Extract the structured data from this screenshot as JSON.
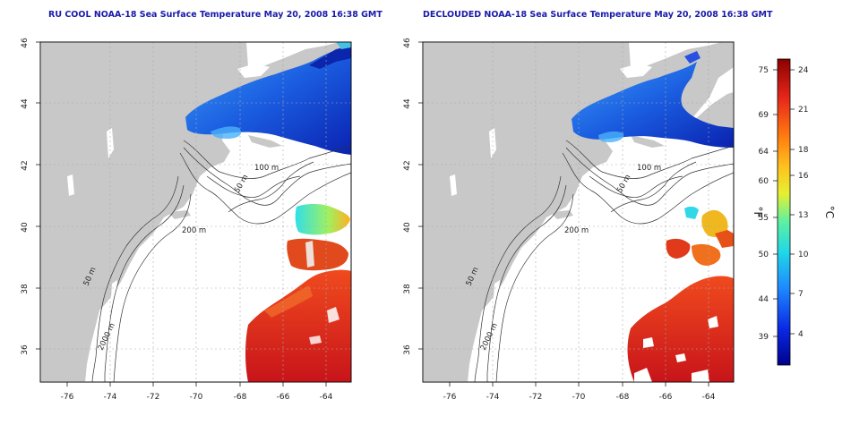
{
  "maps": {
    "left_title": "RU COOL NOAA-18 Sea Surface Temperature May 20, 2008 16:38 GMT",
    "right_title": "DECLOUDED NOAA-18 Sea Surface Temperature May 20, 2008 16:38 GMT",
    "lat_ticks": [
      "46",
      "44",
      "42",
      "40",
      "38",
      "36"
    ],
    "lon_ticks": [
      "-76",
      "-74",
      "-72",
      "-70",
      "-68",
      "-66",
      "-64"
    ],
    "contour_labels": {
      "m100": "100 m",
      "m50": "50 m",
      "m200": "200 m",
      "m2000": "2000 m",
      "m50b": "50 m"
    }
  },
  "colorbar": {
    "f_unit": "°F",
    "c_unit": "°C",
    "f_ticks": [
      "75",
      "69",
      "64",
      "60",
      "55",
      "50",
      "44",
      "39"
    ],
    "c_ticks": [
      "24",
      "21",
      "18",
      "16",
      "13",
      "10",
      "7",
      "4"
    ]
  },
  "colors": {
    "land": "#c8c8c8",
    "cold": "#1f5fd8",
    "warm": "#d8281a",
    "title": "#1a1aaa"
  }
}
